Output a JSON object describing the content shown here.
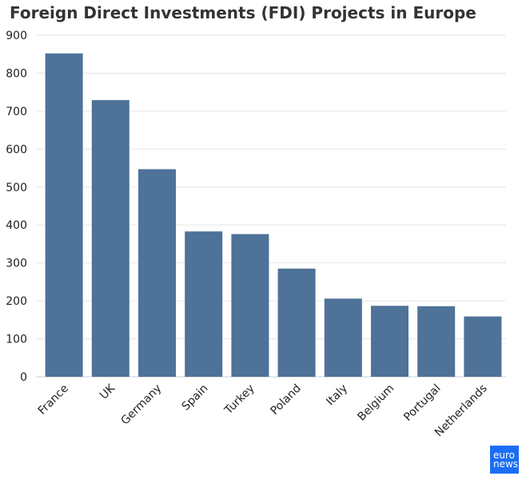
{
  "title": "Foreign Direct Investments (FDI) Projects in Europe",
  "logo": {
    "line1": "euro",
    "line2": "news."
  },
  "colors": {
    "bar": "#4e7298",
    "grid": "#e6e6e6",
    "text": "#222222"
  },
  "chart_data": {
    "type": "bar",
    "title": "Foreign Direct Investments (FDI) Projects in Europe",
    "xlabel": "",
    "ylabel": "",
    "categories": [
      "France",
      "UK",
      "Germany",
      "Spain",
      "Turkey",
      "Poland",
      "Italy",
      "Belgium",
      "Portugal",
      "Netherlands"
    ],
    "values": [
      852,
      729,
      547,
      383,
      376,
      285,
      206,
      187,
      186,
      159
    ],
    "ylim": [
      0,
      900
    ],
    "yticks": [
      0,
      100,
      200,
      300,
      400,
      500,
      600,
      700,
      800,
      900
    ],
    "grid": true,
    "legend": "none"
  }
}
